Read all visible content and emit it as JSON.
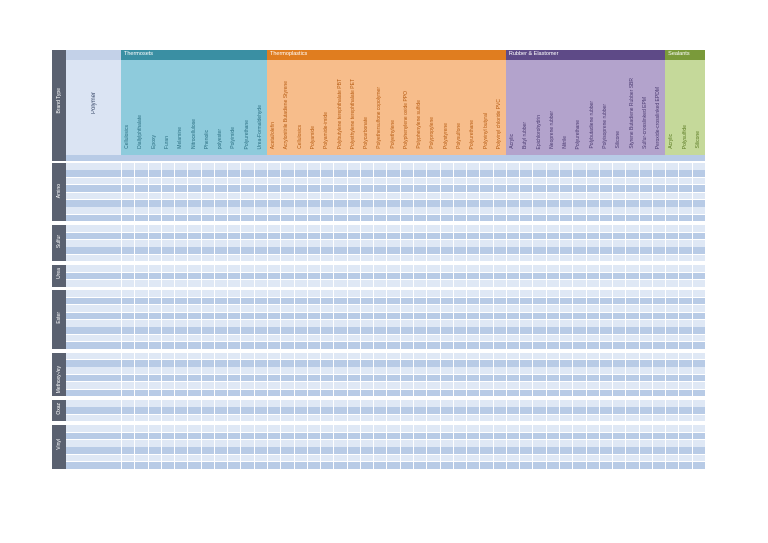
{
  "header": {
    "brand_type_label": "Brand Type",
    "polymer_label": "Polymer"
  },
  "groups": [
    {
      "name": "Thermosets",
      "header_color": "#3a8fa3",
      "body_color": "#8ecbdc",
      "text_color": "#2b6f82",
      "columns": [
        "Cellulosics",
        "Diallylphthalate",
        "Epoxy",
        "Furan",
        "Melamine",
        "Nitrocellulose",
        "Phenolic",
        "polyester",
        "Polyimide",
        "Polyurethane",
        "Urea-Formaldehyde"
      ]
    },
    {
      "name": "Thermoplastics",
      "header_color": "#e07d1f",
      "body_color": "#f7bd8b",
      "text_color": "#b65b12",
      "columns": [
        "Acetal/olefin",
        "Acrylonitrile Butadiene Styrene",
        "Cellulosics",
        "Polyamide",
        "Polyamide-imide",
        "Polybutylene terephthalate PBT",
        "Polyethylene terephthalate PET",
        "Polycarbonate",
        "Polyethersulfone copolymer",
        "Polyethylene",
        "Polyphenylene oxide PPO",
        "Polyphenylene sulfide",
        "Polypropylene",
        "Polystyrene",
        "Polysulfone",
        "Polyurethane",
        "Polyvinyl butyral",
        "Polyvinyl chloride PVC"
      ]
    },
    {
      "name": "Rubber & Elastomer",
      "header_color": "#5e4a87",
      "body_color": "#b3a3cc",
      "text_color": "#4a3a70",
      "columns": [
        "Acrylic",
        "Butyl rubber",
        "Epichlorohydrin",
        "Neoprene rubber",
        "Nitrile",
        "Polyurethane",
        "Polybutadiene rubber",
        "Polyisoprene rubber",
        "Silicone",
        "Styrene Butadiene Rubber SBR",
        "Sulfur-crosslinked EPM",
        "Peroxide-crosslinked EPDM"
      ]
    },
    {
      "name": "Sealants",
      "header_color": "#7a9a3a",
      "body_color": "#c5d99a",
      "text_color": "#5a7a22",
      "columns": [
        "Acrylic",
        "Polysulfide",
        "Silicone"
      ]
    }
  ],
  "categories": [
    {
      "name": "Amino",
      "rows": 8
    },
    {
      "name": "Sulfur",
      "rows": 5
    },
    {
      "name": "Urea",
      "rows": 3
    },
    {
      "name": "Ester",
      "rows": 8
    },
    {
      "name": "Methoxy-/ey",
      "rows": 6
    },
    {
      "name": "Oxaz",
      "rows": 3
    },
    {
      "name": "Vinyl",
      "rows": 6
    }
  ],
  "colors": {
    "side_bar": "#5a6170",
    "header_blue": "#c3d1e8",
    "polymer_cell": "#dbe4f3",
    "row_dark": "#b8cbe6",
    "row_light": "#dfe8f5",
    "grid_line": "#ffffff"
  }
}
